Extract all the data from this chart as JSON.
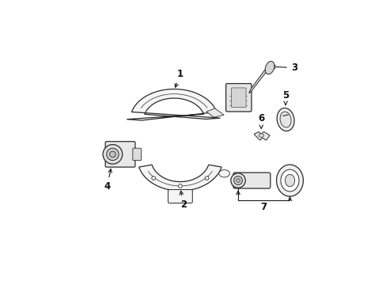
{
  "background_color": "#ffffff",
  "line_color": "#2a2a2a",
  "line_width": 0.9,
  "figsize": [
    4.89,
    3.6
  ],
  "dpi": 100,
  "arrow_color": "#1a1a1a",
  "label_color": "#111111",
  "fill_color": "#f5f5f5",
  "detail_color": "#888888"
}
